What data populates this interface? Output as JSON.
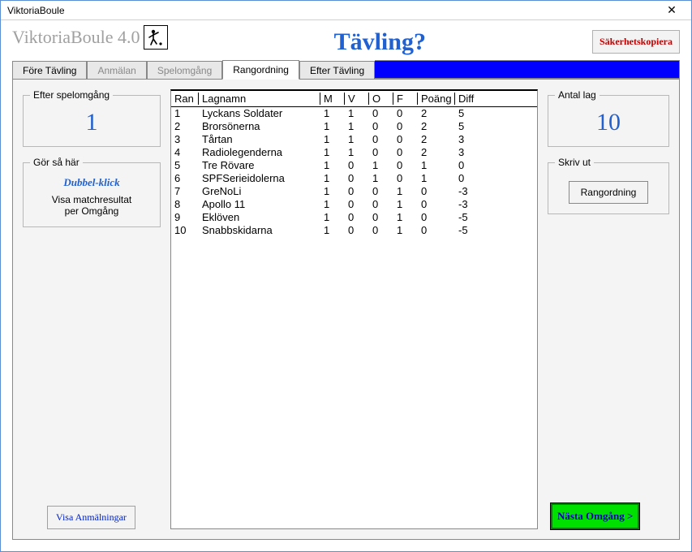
{
  "window": {
    "title": "ViktoriaBoule"
  },
  "brand": {
    "name": "ViktoriaBoule 4.0"
  },
  "page_title": "Tävling?",
  "buttons": {
    "backup": "Säkerhetskopiera",
    "show_reg": "Visa Anmälningar",
    "print_rank": "Rangordning",
    "next_round": "Nästa Omgång >"
  },
  "tabs": {
    "before": "Före Tävling",
    "register": "Anmälan",
    "round": "Spelomgång",
    "rank": "Rangordning",
    "after": "Efter Tävling"
  },
  "left": {
    "after_round_label": "Efter spelomgång",
    "after_round_value": "1",
    "help_label": "Gör så här",
    "help_title": "Dubbel-klick",
    "help_line1": "Visa matchresultat",
    "help_line2": "per Omgång"
  },
  "right": {
    "teams_label": "Antal lag",
    "teams_value": "10",
    "print_label": "Skriv ut"
  },
  "table": {
    "columns": [
      "Ran",
      "Lagnamn",
      "M",
      "V",
      "O",
      "F",
      "Poäng",
      "Diff"
    ],
    "rows": [
      {
        "rank": "1",
        "name": "Lyckans Soldater",
        "m": "1",
        "v": "1",
        "o": "0",
        "f": "0",
        "p": "2",
        "d": "5"
      },
      {
        "rank": "2",
        "name": "Brorsönerna",
        "m": "1",
        "v": "1",
        "o": "0",
        "f": "0",
        "p": "2",
        "d": "5"
      },
      {
        "rank": "3",
        "name": "Tårtan",
        "m": "1",
        "v": "1",
        "o": "0",
        "f": "0",
        "p": "2",
        "d": "3"
      },
      {
        "rank": "4",
        "name": "Radiolegenderna",
        "m": "1",
        "v": "1",
        "o": "0",
        "f": "0",
        "p": "2",
        "d": "3"
      },
      {
        "rank": "5",
        "name": "Tre Rövare",
        "m": "1",
        "v": "0",
        "o": "1",
        "f": "0",
        "p": "1",
        "d": "0"
      },
      {
        "rank": "6",
        "name": "SPFSerieidolerna",
        "m": "1",
        "v": "0",
        "o": "1",
        "f": "0",
        "p": "1",
        "d": "0"
      },
      {
        "rank": "7",
        "name": "GreNoLi",
        "m": "1",
        "v": "0",
        "o": "0",
        "f": "1",
        "p": "0",
        "d": "-3"
      },
      {
        "rank": "8",
        "name": "Apollo 11",
        "m": "1",
        "v": "0",
        "o": "0",
        "f": "1",
        "p": "0",
        "d": "-3"
      },
      {
        "rank": "9",
        "name": "Eklöven",
        "m": "1",
        "v": "0",
        "o": "0",
        "f": "1",
        "p": "0",
        "d": "-5"
      },
      {
        "rank": "10",
        "name": "Snabbskidarna",
        "m": "1",
        "v": "0",
        "o": "0",
        "f": "1",
        "p": "0",
        "d": "-5"
      }
    ]
  }
}
